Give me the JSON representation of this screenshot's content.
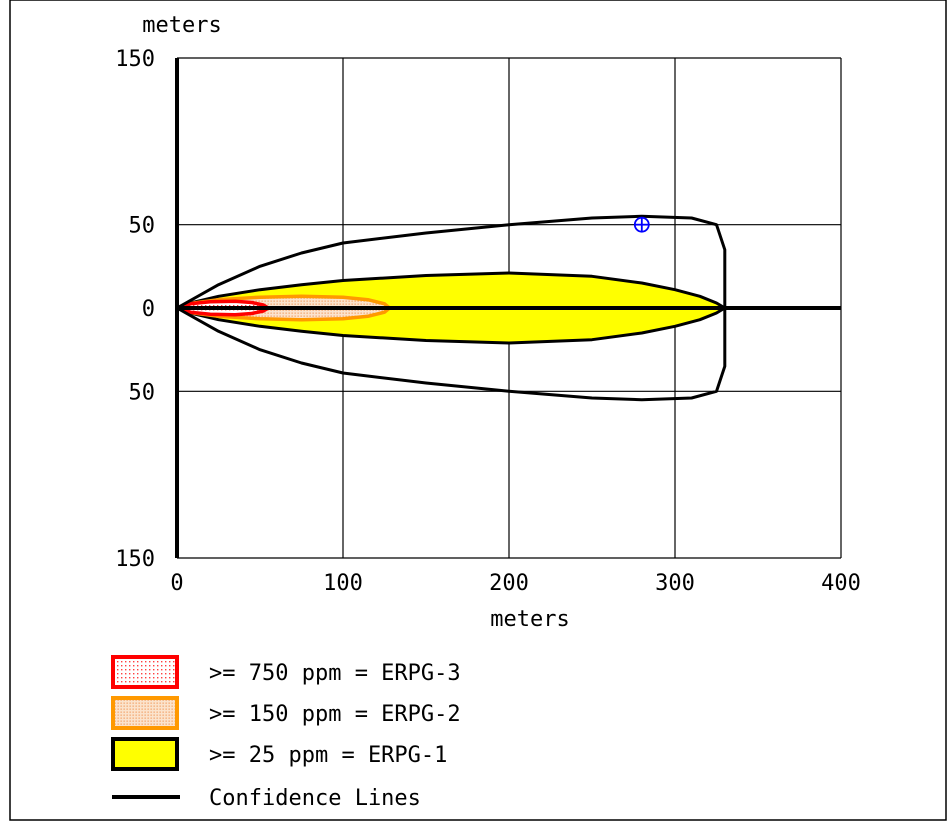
{
  "chart_data": {
    "type": "area",
    "title": "",
    "xlabel": "meters",
    "ylabel": "meters",
    "xlim": [
      0,
      400
    ],
    "ylim": [
      -150,
      150
    ],
    "x_ticks": [
      {
        "value": 0,
        "label": "0"
      },
      {
        "value": 100,
        "label": "100"
      },
      {
        "value": 200,
        "label": "200"
      },
      {
        "value": 300,
        "label": "300"
      },
      {
        "value": 400,
        "label": "400"
      }
    ],
    "y_ticks": [
      {
        "value": 150,
        "label": "150"
      },
      {
        "value": 50,
        "label": "50"
      },
      {
        "value": 0,
        "label": "0"
      },
      {
        "value": -50,
        "label": "50"
      },
      {
        "value": -150,
        "label": "150"
      }
    ],
    "grid": true,
    "legend_position": "bottom-left",
    "series": [
      {
        "name": ">= 25 ppm = ERPG-1",
        "kind": "threat-zone",
        "fill": "#ffff00",
        "stroke": "#000000",
        "legend_swatch": "solid",
        "upper": [
          [
            0,
            0
          ],
          [
            10,
            3.5
          ],
          [
            25,
            7
          ],
          [
            50,
            11
          ],
          [
            75,
            14
          ],
          [
            100,
            16.5
          ],
          [
            150,
            19.5
          ],
          [
            200,
            21
          ],
          [
            250,
            19
          ],
          [
            280,
            15
          ],
          [
            300,
            11
          ],
          [
            315,
            7
          ],
          [
            325,
            3
          ],
          [
            330,
            0
          ]
        ]
      },
      {
        "name": ">= 150 ppm = ERPG-2",
        "kind": "threat-zone",
        "fill": "#fbd7b6",
        "stroke": "#ff9900",
        "legend_swatch": "dotted",
        "upper": [
          [
            0,
            0
          ],
          [
            10,
            3
          ],
          [
            25,
            5
          ],
          [
            50,
            6.5
          ],
          [
            75,
            7
          ],
          [
            100,
            6.5
          ],
          [
            115,
            5
          ],
          [
            125,
            2.5
          ],
          [
            128,
            0
          ]
        ]
      },
      {
        "name": ">= 750 ppm = ERPG-3",
        "kind": "threat-zone",
        "fill": "#ffd6d6",
        "stroke": "#ff0000",
        "legend_swatch": "dotted",
        "upper": [
          [
            0,
            0
          ],
          [
            8,
            2.5
          ],
          [
            20,
            3.8
          ],
          [
            35,
            4
          ],
          [
            45,
            3.3
          ],
          [
            52,
            1.8
          ],
          [
            55,
            0
          ]
        ]
      },
      {
        "name": "Confidence Lines",
        "kind": "line",
        "stroke": "#000000",
        "legend_swatch": "line",
        "upper": [
          [
            0,
            0
          ],
          [
            25,
            14
          ],
          [
            50,
            25
          ],
          [
            75,
            33
          ],
          [
            100,
            39
          ],
          [
            150,
            45
          ],
          [
            200,
            50
          ],
          [
            250,
            54
          ],
          [
            280,
            55
          ],
          [
            310,
            54
          ],
          [
            325,
            50
          ],
          [
            330,
            35
          ],
          [
            330,
            0
          ]
        ]
      }
    ],
    "centerline": {
      "from": 0,
      "to": 400
    },
    "marker": {
      "x": 280,
      "y": 50,
      "color": "#0000ff"
    }
  }
}
